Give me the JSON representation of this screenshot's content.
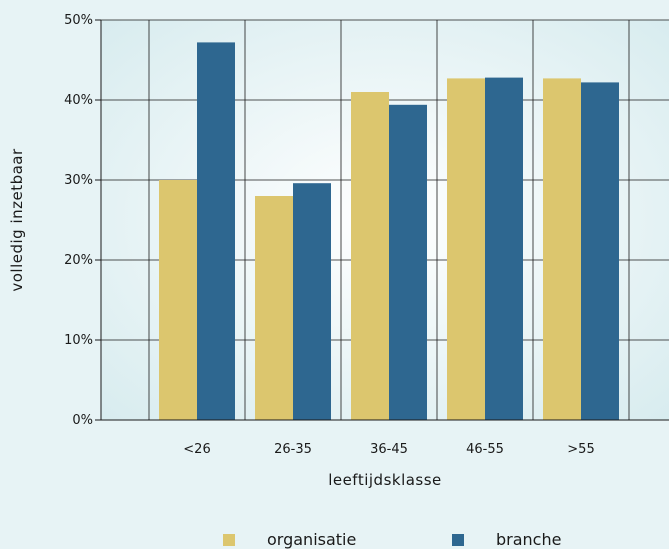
{
  "chart_data": {
    "type": "bar",
    "categories": [
      "<26",
      "26-35",
      "36-45",
      "46-55",
      ">55"
    ],
    "series": [
      {
        "name": "organisatie",
        "values": [
          30,
          28,
          41,
          42.7,
          42.7
        ],
        "color": "#dcc66e"
      },
      {
        "name": "branche",
        "values": [
          47.2,
          29.6,
          39.4,
          42.8,
          42.2
        ],
        "color": "#2e6790"
      }
    ],
    "xlabel": "leeftijdsklasse",
    "ylabel": "volledig inzetbaar",
    "ylim": [
      0,
      50
    ],
    "yticks": [
      "0%",
      "10%",
      "20%",
      "30%",
      "40%",
      "50%"
    ],
    "grid": true,
    "legend_position": "bottom"
  }
}
